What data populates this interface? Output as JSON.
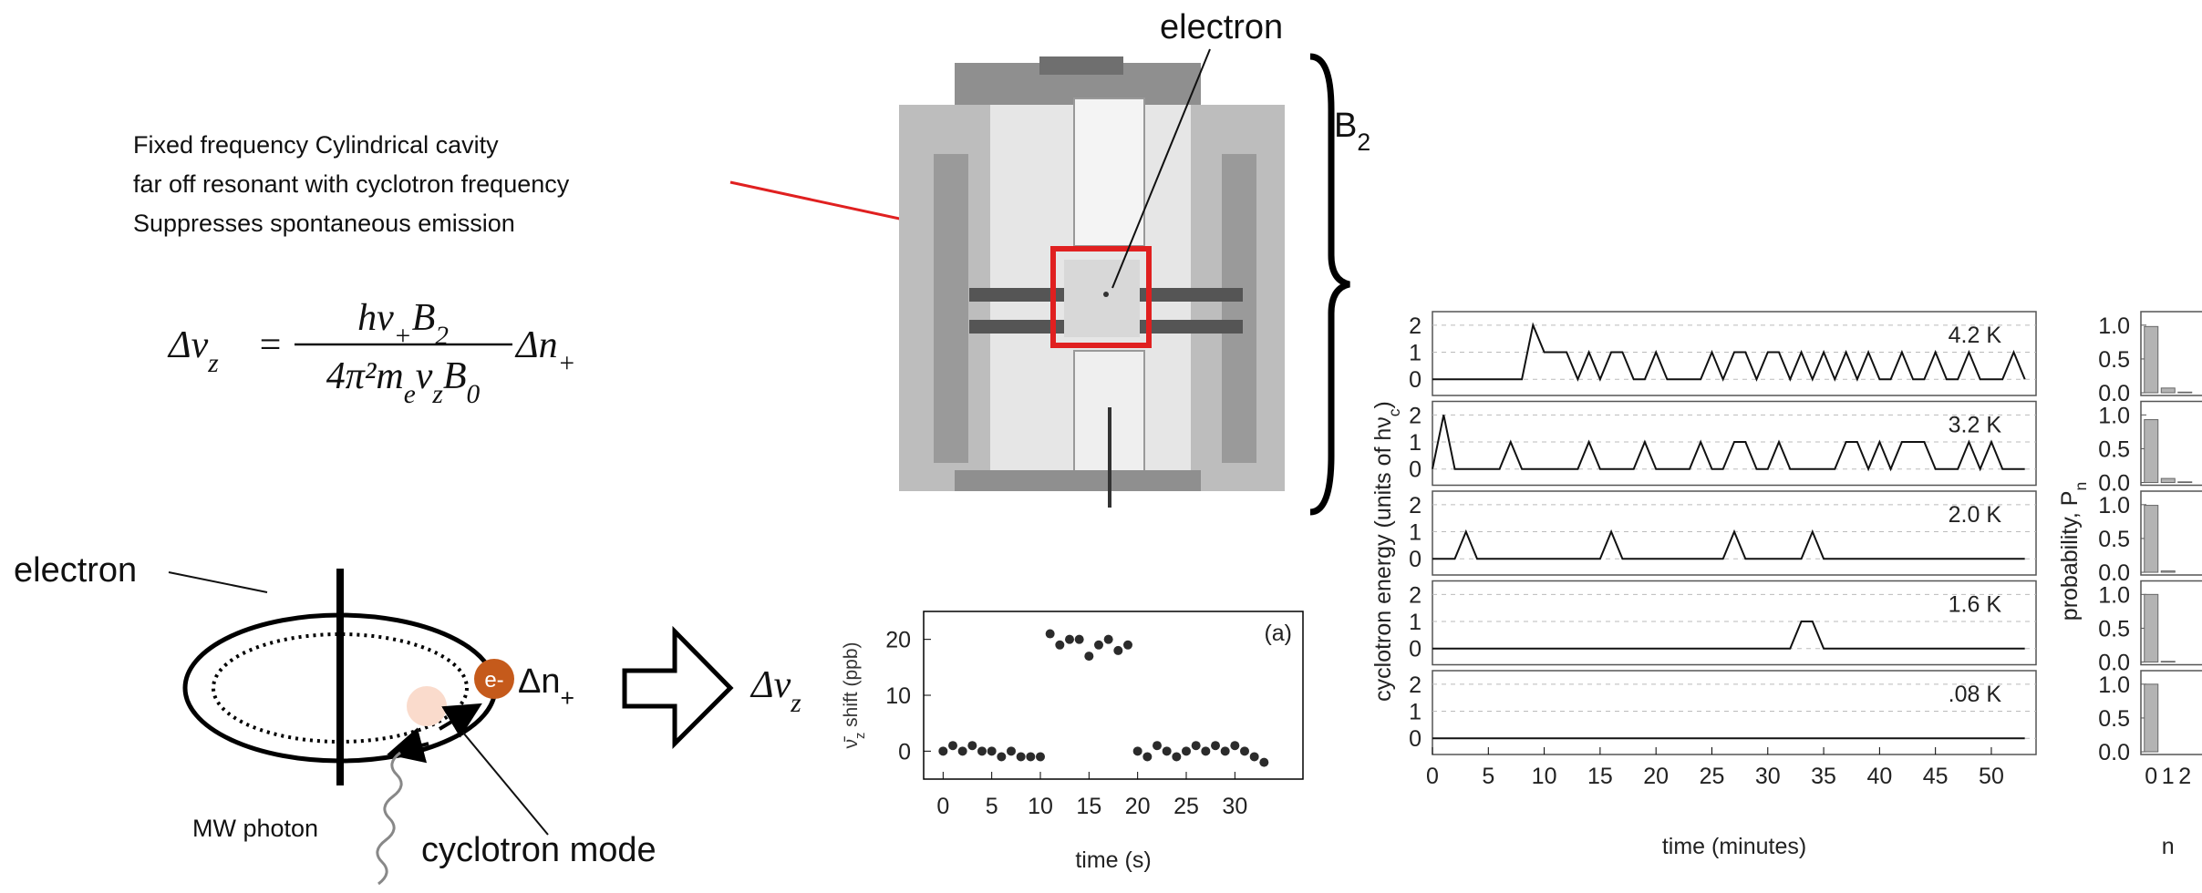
{
  "caption": [
    "Fixed frequency Cylindrical cavity",
    "far off resonant with cyclotron frequency",
    "Suppresses spontaneous emission"
  ],
  "equation": {
    "lhs": [
      "Δν",
      "z"
    ],
    "equals": "=",
    "numerator": [
      "hν",
      "+",
      "B",
      "2"
    ],
    "denominator": [
      "4π²m",
      "e",
      "ν",
      "z",
      "B",
      "0"
    ],
    "rhs": [
      "Δn",
      "+"
    ]
  },
  "trap": {
    "electron_label": "electron",
    "field_label": [
      "B",
      "2"
    ]
  },
  "orbit": {
    "electron_label": "electron",
    "particle": "e-",
    "jump_label": [
      "Δn",
      "+"
    ],
    "photon_label": "MW photon",
    "mode_label": "cyclotron mode",
    "result_label": [
      "Δν",
      "z"
    ]
  },
  "chart_data": [
    {
      "type": "scatter",
      "annotation": "(a)",
      "x_label": "time (s)",
      "y_label": [
        "ν̄",
        "z",
        " shift  (ppb)"
      ],
      "x": [
        0,
        1,
        2,
        3,
        4,
        5,
        6,
        7,
        8,
        9,
        10,
        11,
        12,
        13,
        14,
        15,
        16,
        17,
        18,
        19,
        20,
        21,
        22,
        23,
        24,
        25,
        26,
        27,
        28,
        29,
        30,
        31,
        32,
        33
      ],
      "values": [
        0,
        1,
        0,
        1,
        0,
        0,
        -1,
        0,
        -1,
        -1,
        -1,
        21,
        19,
        20,
        20,
        17,
        19,
        20,
        18,
        19,
        0,
        -1,
        1,
        0,
        -1,
        0,
        1,
        0,
        1,
        0,
        1,
        0,
        -1,
        -2
      ],
      "color": "#2b2b2b",
      "xlim": [
        -2,
        37
      ],
      "ylim": [
        -5,
        25
      ],
      "xticks": [
        0,
        5,
        10,
        15,
        20,
        25,
        30
      ],
      "yticks": [
        0,
        10,
        20
      ]
    },
    {
      "type": "line",
      "x_label": "time (minutes)",
      "y_label": [
        "cyclotron energy (units of hν",
        "c",
        ")"
      ],
      "x": [
        0,
        1,
        2,
        3,
        4,
        5,
        6,
        7,
        8,
        9,
        10,
        11,
        12,
        13,
        14,
        15,
        16,
        17,
        18,
        19,
        20,
        21,
        22,
        23,
        24,
        25,
        26,
        27,
        28,
        29,
        30,
        31,
        32,
        33,
        34,
        35,
        36,
        37,
        38,
        39,
        40,
        41,
        42,
        43,
        44,
        45,
        46,
        47,
        48,
        49,
        50,
        51,
        52,
        53
      ],
      "series": [
        {
          "name": "4.2 K",
          "values": [
            0,
            0,
            0,
            0,
            0,
            0,
            0,
            0,
            0,
            2,
            1,
            1,
            1,
            0,
            1,
            0,
            1,
            1,
            0,
            0,
            1,
            0,
            0,
            0,
            0,
            1,
            0,
            1,
            1,
            0,
            1,
            1,
            0,
            1,
            0,
            1,
            0,
            1,
            0,
            1,
            0,
            0,
            1,
            0,
            0,
            1,
            0,
            0,
            1,
            0,
            0,
            0,
            1,
            0
          ]
        },
        {
          "name": "3.2 K",
          "values": [
            0,
            2,
            0,
            0,
            0,
            0,
            0,
            1,
            0,
            0,
            0,
            0,
            0,
            0,
            1,
            0,
            0,
            0,
            0,
            1,
            0,
            0,
            0,
            0,
            1,
            0,
            0,
            1,
            1,
            0,
            0,
            1,
            0,
            0,
            0,
            0,
            0,
            1,
            1,
            0,
            1,
            0,
            1,
            1,
            1,
            0,
            0,
            0,
            1,
            0,
            1,
            0,
            0,
            0
          ]
        },
        {
          "name": "2.0 K",
          "values": [
            0,
            0,
            0,
            1,
            0,
            0,
            0,
            0,
            0,
            0,
            0,
            0,
            0,
            0,
            0,
            0,
            1,
            0,
            0,
            0,
            0,
            0,
            0,
            0,
            0,
            0,
            0,
            1,
            0,
            0,
            0,
            0,
            0,
            0,
            1,
            0,
            0,
            0,
            0,
            0,
            0,
            0,
            0,
            0,
            0,
            0,
            0,
            0,
            0,
            0,
            0,
            0,
            0,
            0
          ]
        },
        {
          "name": "1.6 K",
          "values": [
            0,
            0,
            0,
            0,
            0,
            0,
            0,
            0,
            0,
            0,
            0,
            0,
            0,
            0,
            0,
            0,
            0,
            0,
            0,
            0,
            0,
            0,
            0,
            0,
            0,
            0,
            0,
            0,
            0,
            0,
            0,
            0,
            0,
            1,
            1,
            0,
            0,
            0,
            0,
            0,
            0,
            0,
            0,
            0,
            0,
            0,
            0,
            0,
            0,
            0,
            0,
            0,
            0,
            0
          ]
        },
        {
          "name": ".08 K",
          "values": [
            0,
            0,
            0,
            0,
            0,
            0,
            0,
            0,
            0,
            0,
            0,
            0,
            0,
            0,
            0,
            0,
            0,
            0,
            0,
            0,
            0,
            0,
            0,
            0,
            0,
            0,
            0,
            0,
            0,
            0,
            0,
            0,
            0,
            0,
            0,
            0,
            0,
            0,
            0,
            0,
            0,
            0,
            0,
            0,
            0,
            0,
            0,
            0,
            0,
            0,
            0,
            0,
            0,
            0
          ]
        }
      ],
      "color": "#111111",
      "xlim": [
        0,
        54
      ],
      "ylim": [
        -0.6,
        2.5
      ],
      "xticks": [
        0,
        5,
        10,
        15,
        20,
        25,
        30,
        35,
        40,
        45,
        50
      ],
      "yticks": [
        0,
        1,
        2
      ],
      "grid": true
    },
    {
      "type": "bar",
      "x_label": "n",
      "y_label": [
        "probability, P",
        "n"
      ],
      "categories": [
        0,
        1,
        2
      ],
      "series": [
        {
          "values": [
            0.98,
            0.07,
            0.01
          ]
        },
        {
          "values": [
            0.93,
            0.06,
            0.01
          ]
        },
        {
          "values": [
            0.99,
            0.02,
            0
          ]
        },
        {
          "values": [
            1,
            0.01,
            0
          ]
        },
        {
          "values": [
            1,
            0,
            0
          ]
        }
      ],
      "color": "#b3b3b3",
      "ylim": [
        -0.04,
        1.2
      ],
      "yticks": [
        {
          "value": 0,
          "label": "0.0"
        },
        0.5,
        {
          "value": 1,
          "label": "1.0"
        }
      ]
    }
  ]
}
